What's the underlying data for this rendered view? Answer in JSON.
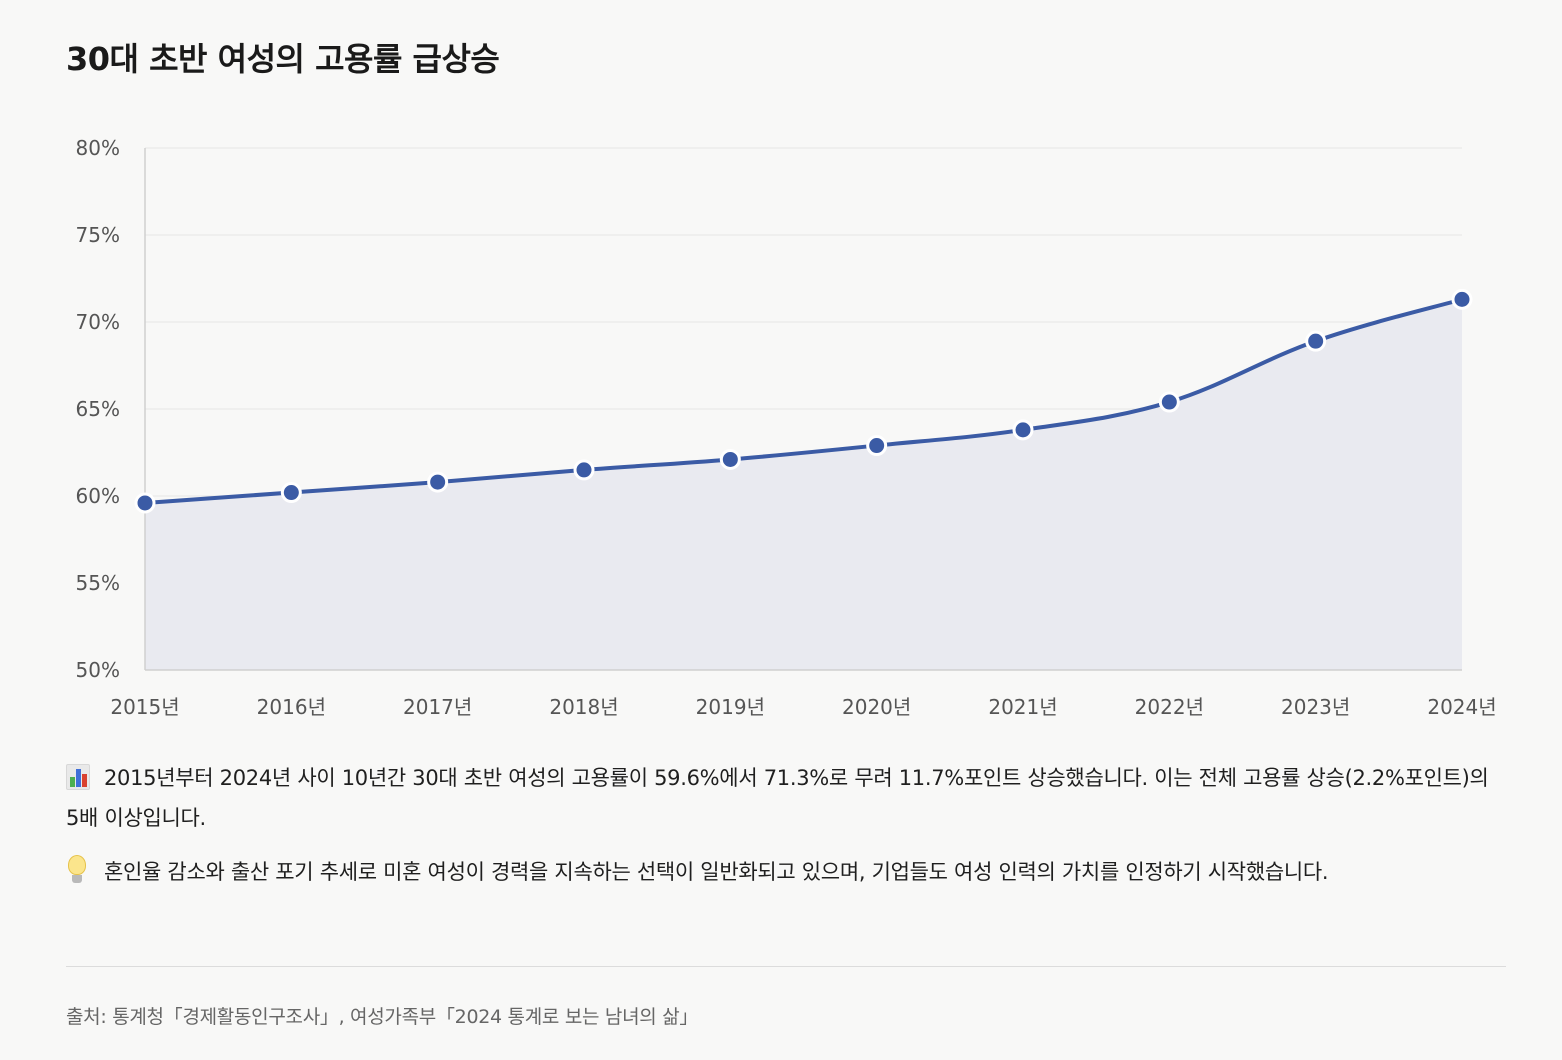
{
  "title": "30대 초반 여성의 고용률 급상승",
  "chart_data": {
    "type": "area",
    "x": [
      "2015년",
      "2016년",
      "2017년",
      "2018년",
      "2019년",
      "2020년",
      "2021년",
      "2022년",
      "2023년",
      "2024년"
    ],
    "series": [
      {
        "values": [
          59.6,
          60.2,
          60.8,
          61.5,
          62.1,
          62.9,
          63.8,
          65.4,
          68.9,
          71.3
        ]
      }
    ],
    "y_ticks": [
      "50%",
      "55%",
      "60%",
      "65%",
      "70%",
      "75%",
      "80%"
    ],
    "ylim": [
      50,
      80
    ],
    "grid": true,
    "line_color": "#3b5ba5",
    "fill_color": "#e9eaf0",
    "title": "",
    "xlabel": "",
    "ylabel": ""
  },
  "notes": {
    "summary": {
      "icon": "bar-chart-icon",
      "text": "2015년부터 2024년 사이 10년간 30대 초반 여성의 고용률이 59.6%에서 71.3%로 무려 11.7%포인트 상승했습니다. 이는 전체 고용률 상승(2.2%포인트)의 5배 이상입니다."
    },
    "insight": {
      "icon": "lightbulb-icon",
      "text": "혼인율 감소와 출산 포기 추세로 미혼 여성이 경력을 지속하는 선택이 일반화되고 있으며, 기업들도 여성 인력의 가치를 인정하기 시작했습니다."
    }
  },
  "source": "출처: 통계청「경제활동인구조사」, 여성가족부「2024 통계로 보는 남녀의 삶」"
}
